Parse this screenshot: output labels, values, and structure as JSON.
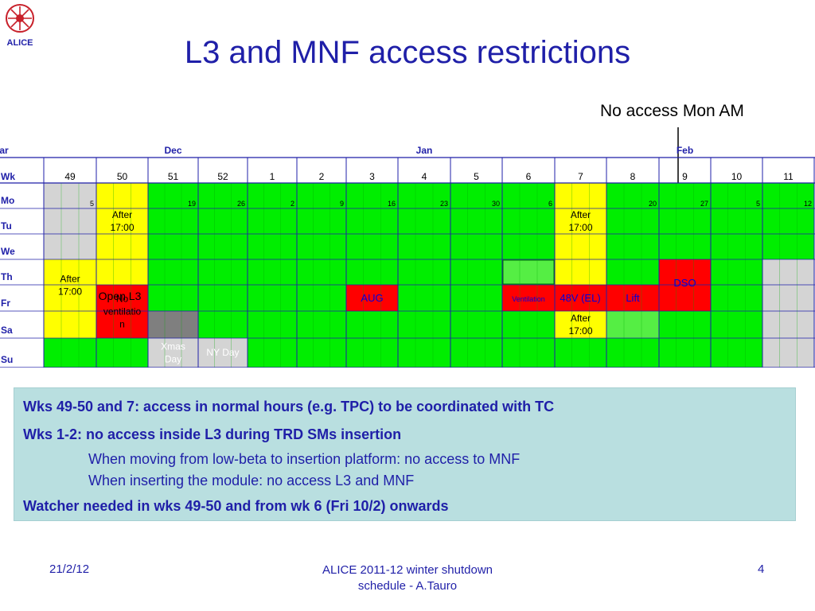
{
  "header": {
    "logo_text": "ALICE",
    "title": "L3 and MNF access restrictions",
    "callout": "No access Mon AM"
  },
  "schedule": {
    "months": [
      {
        "label": "Dec",
        "col": 2
      },
      {
        "label": "Jan",
        "col": 7
      },
      {
        "label": "Feb",
        "col": 12
      },
      {
        "label": "Mar",
        "col": 15
      }
    ],
    "row_labels": [
      "Wk",
      "Mo",
      "Tu",
      "We",
      "Th",
      "Fr",
      "Sa",
      "Su"
    ],
    "weeks": [
      "49",
      "50",
      "51",
      "52",
      "1",
      "2",
      "3",
      "4",
      "5",
      "6",
      "7",
      "8",
      "9",
      "10",
      "11"
    ],
    "monday_dates": [
      "5",
      "",
      "19",
      "26",
      "2",
      "9",
      "16",
      "23",
      "30",
      "6",
      "",
      "20",
      "27",
      "5",
      "12"
    ],
    "colors": {
      "green": "#00ee00",
      "yellow": "#ffff00",
      "red": "#ff0000",
      "gray": "#d4d4d4",
      "darkgray": "#7f7f7f",
      "lightgreen": "#55ee44",
      "grid": "#00aa00",
      "border": "#1f1fa8"
    },
    "labels": {
      "after_wk50": [
        "After",
        "17:00"
      ],
      "after_wk7": [
        "After",
        "17:00"
      ],
      "after_wk49": [
        "After",
        "17:00"
      ],
      "after_sa7": [
        "After",
        "17:00"
      ],
      "open_l3": "Open L3",
      "no_ventilation": [
        "No",
        "ventilatio",
        "n"
      ],
      "aug": "AUG",
      "ventilation": "Ventilation",
      "v48": "48V (EL)",
      "lift": "Lift",
      "dso": "DSO",
      "xmas": [
        "Xmas",
        "Day"
      ],
      "nyday": "NY Day"
    }
  },
  "info": {
    "line1": "Wks 49-50 and 7: access in normal hours (e.g. TPC) to be coordinated with TC",
    "line2": "Wks 1-2: no access inside L3 during TRD SMs insertion",
    "line3": "When moving from low-beta to insertion platform: no access to MNF",
    "line4": "When inserting the module: no access L3 and MNF",
    "line5": "Watcher needed in wks 49-50 and from wk 6 (Fri 10/2) onwards"
  },
  "footer": {
    "date": "21/2/12",
    "center_line1": "ALICE 2011-12 winter shutdown",
    "center_line2": "schedule - A.Tauro",
    "page": "4"
  }
}
